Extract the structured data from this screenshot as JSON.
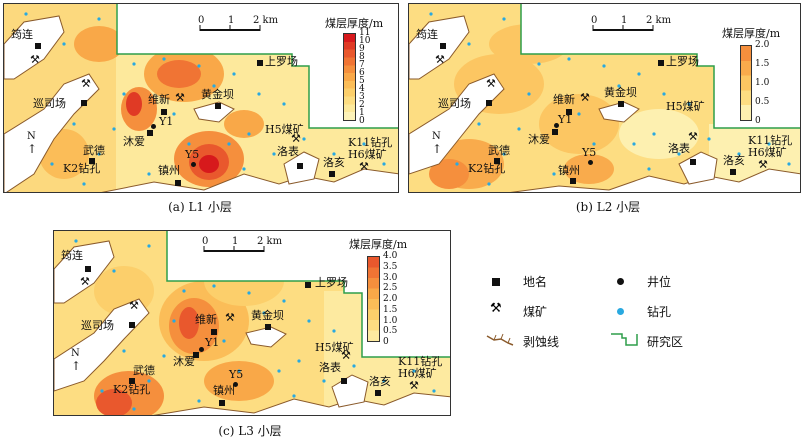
{
  "panels": [
    {
      "caption": "(a) L1 小层",
      "colorbar": {
        "title": "煤层厚度/m",
        "ticks": [
          "11",
          "10",
          "9",
          "8",
          "7",
          "6",
          "5",
          "4",
          "3",
          "2",
          "1",
          "0"
        ],
        "colors": [
          "#d7191c",
          "#e03a25",
          "#e9582d",
          "#f07434",
          "#f58f3d",
          "#f9a848",
          "#fbbd58",
          "#fccf6b",
          "#fddd82",
          "#fde99c",
          "#fdf2b8"
        ]
      },
      "scale": {
        "labels": [
          "0",
          "1",
          "2 km"
        ]
      },
      "north": "N",
      "places": [
        "筠连",
        "巡司场",
        "武德",
        "K2钻孔",
        "沐爱",
        "维新",
        "黄金坝",
        "上罗场",
        "H5煤矿",
        "洛表",
        "洛亥",
        "K11钻孔",
        "H6煤矿",
        "镇州",
        "Y1",
        "Y5"
      ]
    },
    {
      "caption": "(b) L2 小层",
      "colorbar": {
        "title": "煤层厚度/m",
        "ticks": [
          "2.0",
          "1.5",
          "1.0",
          "0.5",
          "0"
        ],
        "colors": [
          "#f58f3d",
          "#f9ab4c",
          "#fcc662",
          "#fddd82",
          "#fdf0b0"
        ]
      },
      "scale": {
        "labels": [
          "0",
          "1",
          "2 km"
        ]
      },
      "north": "N",
      "places": [
        "筠连",
        "巡司场",
        "武德",
        "K2钻孔",
        "沐爱",
        "维新",
        "黄金坝",
        "上罗场",
        "H5煤矿",
        "洛表",
        "洛亥",
        "K11钻孔",
        "H6煤矿",
        "镇州",
        "Y1",
        "Y5"
      ]
    },
    {
      "caption": "(c) L3 小层",
      "colorbar": {
        "title": "煤层厚度/m",
        "ticks": [
          "4.0",
          "3.5",
          "3.0",
          "2.5",
          "2.0",
          "1.5",
          "1.0",
          "0.5",
          "0"
        ],
        "colors": [
          "#e9582d",
          "#f07434",
          "#f58f3d",
          "#f9a848",
          "#fbbd58",
          "#fccf6b",
          "#fddd82",
          "#fdeaa0"
        ]
      },
      "scale": {
        "labels": [
          "0",
          "1",
          "2 km"
        ]
      },
      "north": "N",
      "places": [
        "筠连",
        "巡司场",
        "武德",
        "K2钻孔",
        "沐爱",
        "维新",
        "黄金坝",
        "上罗场",
        "H5煤矿",
        "洛表",
        "洛亥",
        "K11钻孔",
        "H6煤矿",
        "镇州",
        "Y1",
        "Y5"
      ]
    }
  ],
  "legend": {
    "items": [
      {
        "symbol": "place-square",
        "label": "地名"
      },
      {
        "symbol": "well-dot",
        "label": "井位"
      },
      {
        "symbol": "mine-icon",
        "label": "煤矿"
      },
      {
        "symbol": "borehole-dot",
        "label": "钻孔"
      },
      {
        "symbol": "erosion-line",
        "label": "剥蚀线"
      },
      {
        "symbol": "study-area",
        "label": "研究区"
      }
    ],
    "colors": {
      "borehole": "#29a9e0",
      "study_area": "#2e9e4a",
      "erosion": "#8a5a2b"
    }
  }
}
